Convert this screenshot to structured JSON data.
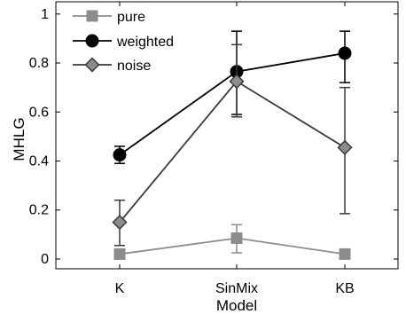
{
  "chart_data": {
    "type": "line",
    "title": "",
    "xlabel": "Model",
    "ylabel": "MHLG",
    "categories": [
      "K",
      "SinMix",
      "KB"
    ],
    "ylim": [
      -0.04,
      1.05
    ],
    "yticks": [
      0,
      0.2,
      0.4,
      0.6,
      0.8,
      1
    ],
    "ytick_labels": [
      "0",
      "0.2",
      "0.4",
      "0.6",
      "0.8",
      "1"
    ],
    "grid": false,
    "legend_position": "top-left",
    "series": [
      {
        "name": "pure",
        "marker": "square",
        "color": "#8c8c8c",
        "values": [
          0.02,
          0.085,
          0.02
        ],
        "err_low": [
          0.005,
          0.025,
          0.005
        ],
        "err_high": [
          0.04,
          0.14,
          0.04
        ]
      },
      {
        "name": "weighted",
        "marker": "circle",
        "color": "#000000",
        "values": [
          0.425,
          0.765,
          0.84
        ],
        "err_low": [
          0.39,
          0.59,
          0.72
        ],
        "err_high": [
          0.46,
          0.93,
          0.93
        ]
      },
      {
        "name": "noise",
        "marker": "diamond",
        "color": "#3a3a3a",
        "fill": "#8c8c8c",
        "values": [
          0.15,
          0.725,
          0.455
        ],
        "err_low": [
          0.055,
          0.58,
          0.185
        ],
        "err_high": [
          0.24,
          0.875,
          0.7
        ]
      }
    ]
  }
}
